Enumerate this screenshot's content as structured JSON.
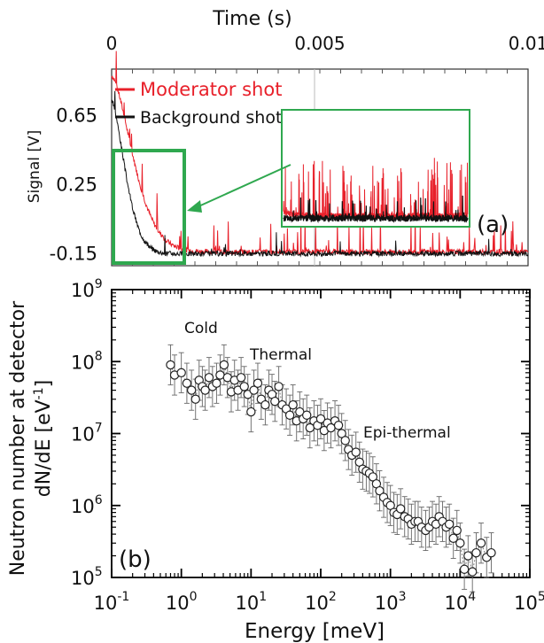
{
  "chart_data": [
    {
      "panel": "(a)",
      "type": "line",
      "xlabel": "Time (s)",
      "ylabel": "Signal [V]",
      "x_ticks": [
        "0",
        "0.005",
        "0.01"
      ],
      "y_ticks": [
        "0.65",
        "0.25",
        "-0.15"
      ],
      "xlim": [
        0,
        0.01
      ],
      "ylim": [
        -0.22,
        0.92
      ],
      "legend_position": "top-left",
      "series": [
        {
          "name": "Moderator shot",
          "color": "#e8202a",
          "decay_start": 0.88,
          "decay_tau": 0.0007,
          "baseline": -0.14
        },
        {
          "name": "Background shot",
          "color": "#111111",
          "decay_start": 0.73,
          "decay_tau": 0.00045,
          "baseline": -0.15
        }
      ],
      "inset_color": "#2fa84f"
    },
    {
      "panel": "(b)",
      "type": "scatter",
      "xlabel": "Energy [meV]",
      "ylabel": "Neutron number at detector",
      "ylabel2": "dN/dE [eV",
      "ylabel2_exp": "-1",
      "ylabel2_end": "]",
      "x_scale": "log",
      "y_scale": "log",
      "xlim": [
        0.1,
        100000
      ],
      "ylim": [
        100000,
        1000000000
      ],
      "x_tick_labels": [
        {
          "base": "10",
          "exp": "-1"
        },
        {
          "base": "10",
          "exp": "0"
        },
        {
          "base": "10",
          "exp": "1"
        },
        {
          "base": "10",
          "exp": "2"
        },
        {
          "base": "10",
          "exp": "3"
        },
        {
          "base": "10",
          "exp": "4"
        },
        {
          "base": "10",
          "exp": "5"
        }
      ],
      "y_tick_labels": [
        {
          "base": "10",
          "exp": "5"
        },
        {
          "base": "10",
          "exp": "6"
        },
        {
          "base": "10",
          "exp": "7"
        },
        {
          "base": "10",
          "exp": "8"
        },
        {
          "base": "10",
          "exp": "9"
        }
      ],
      "annotations": [
        "Cold",
        "Thermal",
        "Epi-thermal"
      ],
      "points": [
        [
          0.7,
          90000000.0
        ],
        [
          0.8,
          65000000.0
        ],
        [
          1.0,
          70000000.0
        ],
        [
          1.2,
          50000000.0
        ],
        [
          1.4,
          40000000.0
        ],
        [
          1.6,
          30000000.0
        ],
        [
          1.8,
          55000000.0
        ],
        [
          2.0,
          45000000.0
        ],
        [
          2.2,
          40000000.0
        ],
        [
          2.5,
          60000000.0
        ],
        [
          2.8,
          45000000.0
        ],
        [
          3.2,
          50000000.0
        ],
        [
          3.6,
          65000000.0
        ],
        [
          4.1,
          90000000.0
        ],
        [
          4.6,
          60000000.0
        ],
        [
          5.2,
          38000000.0
        ],
        [
          5.8,
          55000000.0
        ],
        [
          6.5,
          40000000.0
        ],
        [
          7.2,
          60000000.0
        ],
        [
          8.0,
          45000000.0
        ],
        [
          9.0,
          35000000.0
        ],
        [
          10,
          20000000.0
        ],
        [
          11,
          40000000.0
        ],
        [
          12.5,
          50000000.0
        ],
        [
          14,
          30000000.0
        ],
        [
          16,
          25000000.0
        ],
        [
          18,
          40000000.0
        ],
        [
          20,
          35000000.0
        ],
        [
          22,
          28000000.0
        ],
        [
          25,
          45000000.0
        ],
        [
          28,
          25000000.0
        ],
        [
          32,
          22000000.0
        ],
        [
          36,
          18000000.0
        ],
        [
          40,
          25000000.0
        ],
        [
          45,
          15000000.0
        ],
        [
          50,
          20000000.0
        ],
        [
          56,
          16000000.0
        ],
        [
          63,
          18000000.0
        ],
        [
          70,
          12000000.0
        ],
        [
          80,
          15000000.0
        ],
        [
          90,
          13000000.0
        ],
        [
          100,
          16000000.0
        ],
        [
          112,
          11000000.0
        ],
        [
          125,
          14000000.0
        ],
        [
          140,
          12000000.0
        ],
        [
          160,
          15000000.0
        ],
        [
          180,
          13000000.0
        ],
        [
          200,
          10000000.0
        ],
        [
          225,
          8000000.0
        ],
        [
          250,
          6000000.0
        ],
        [
          280,
          5000000.0
        ],
        [
          320,
          5500000.0
        ],
        [
          360,
          4000000.0
        ],
        [
          400,
          3200000.0
        ],
        [
          450,
          3000000.0
        ],
        [
          500,
          2800000.0
        ],
        [
          560,
          2500000.0
        ],
        [
          630,
          2000000.0
        ],
        [
          700,
          1600000.0
        ],
        [
          800,
          1300000.0
        ],
        [
          900,
          1100000.0
        ],
        [
          1000,
          1000000.0
        ],
        [
          1120,
          800000.0
        ],
        [
          1250,
          750000.0
        ],
        [
          1400,
          900000.0
        ],
        [
          1600,
          700000.0
        ],
        [
          1800,
          650000.0
        ],
        [
          2000,
          550000.0
        ],
        [
          2250,
          600000.0
        ],
        [
          2500,
          600000.0
        ],
        [
          2800,
          500000.0
        ],
        [
          3200,
          450000.0
        ],
        [
          3600,
          500000.0
        ],
        [
          4000,
          600000.0
        ],
        [
          4500,
          550000.0
        ],
        [
          5000,
          700000.0
        ],
        [
          5600,
          600000.0
        ],
        [
          6300,
          500000.0
        ],
        [
          7000,
          550000.0
        ],
        [
          8000,
          350000.0
        ],
        [
          9000,
          450000.0
        ],
        [
          10000,
          300000.0
        ],
        [
          11500,
          130000.0
        ],
        [
          13000,
          200000.0
        ],
        [
          15000,
          120000.0
        ],
        [
          17000,
          220000.0
        ],
        [
          20000,
          300000.0
        ],
        [
          24000,
          190000.0
        ],
        [
          28000,
          220000.0
        ]
      ]
    }
  ]
}
